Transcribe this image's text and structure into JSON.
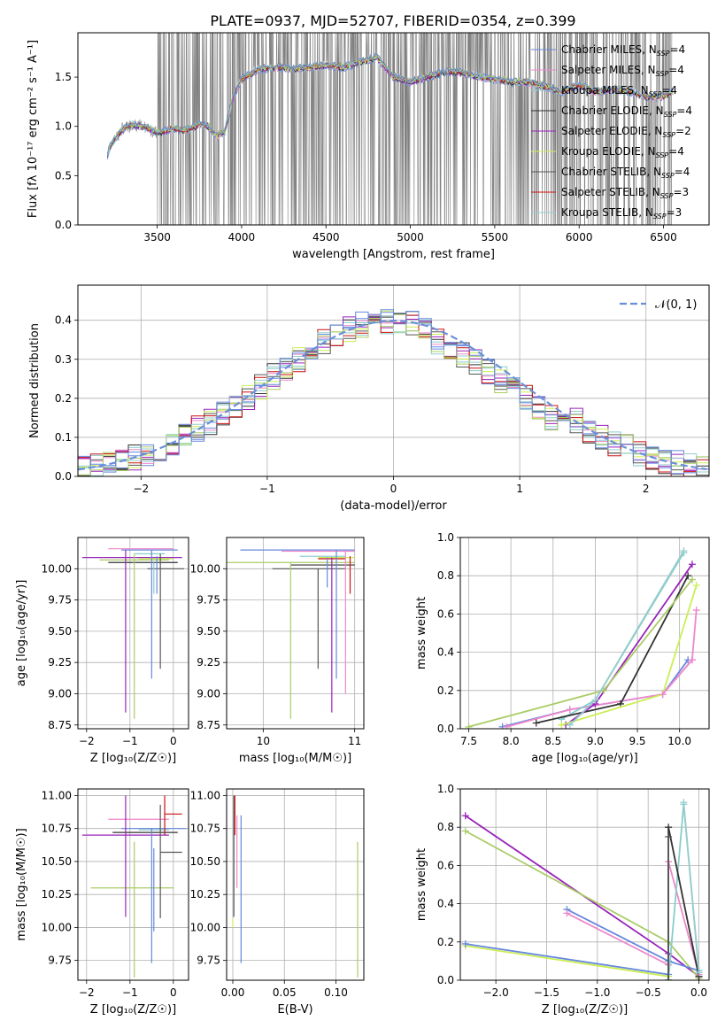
{
  "figure": {
    "title": "PLATE=0937, MJD=52707, FIBERID=0354, z=0.399"
  },
  "series_colors": [
    "#6688dd",
    "#ee88cc",
    "#88cccc",
    "#333333",
    "#9922bb",
    "#ccee55",
    "#555555",
    "#cc1111",
    "#99cccc"
  ],
  "series_names_extra": [
    "#dd7722",
    "#bbdd66"
  ],
  "chart_data": [
    {
      "id": "spectrum",
      "type": "line",
      "xlabel": "wavelength [Angstrom, rest frame]",
      "ylabel": "Flux [fλ 10⁻¹⁷ erg cm⁻² s⁻¹ A⁻¹]",
      "xlim": [
        3030,
        6770
      ],
      "ylim": [
        0,
        1.95
      ],
      "xticks": [
        3500,
        4000,
        4500,
        5000,
        5500,
        6000,
        6500
      ],
      "yticks": [
        0.0,
        0.5,
        1.0,
        1.5
      ],
      "grid": false,
      "legend_position": "top-right",
      "legend": [
        {
          "label": "Chabrier MILES, N",
          "sub": "SSP",
          "suffix": "=4",
          "color": "#6688dd"
        },
        {
          "label": "Salpeter MILES, N",
          "sub": "SSP",
          "suffix": "=4",
          "color": "#ee88cc"
        },
        {
          "label": "Kroupa MILES, N",
          "sub": "SSP",
          "suffix": "=4",
          "color": "#88cccc"
        },
        {
          "label": "Chabrier ELODIE, N",
          "sub": "SSP",
          "suffix": "=4",
          "color": "#333333"
        },
        {
          "label": "Salpeter ELODIE, N",
          "sub": "SSP",
          "suffix": "=2",
          "color": "#9922bb"
        },
        {
          "label": "Kroupa ELODIE, N",
          "sub": "SSP",
          "suffix": "=4",
          "color": "#ccee55"
        },
        {
          "label": "Chabrier STELIB, N",
          "sub": "SSP",
          "suffix": "=4",
          "color": "#555555"
        },
        {
          "label": "Salpeter STELIB, N",
          "sub": "SSP",
          "suffix": "=3",
          "color": "#cc1111"
        },
        {
          "label": "Kroupa STELIB, N",
          "sub": "SSP",
          "suffix": "=3",
          "color": "#99cccc"
        }
      ],
      "continuum": {
        "x": [
          3205,
          3220,
          3260,
          3300,
          3350,
          3400,
          3450,
          3500,
          3550,
          3600,
          3650,
          3700,
          3750,
          3800,
          3850,
          3900,
          3950,
          4000,
          4100,
          4200,
          4300,
          4400,
          4500,
          4600,
          4700,
          4800,
          4900,
          5000,
          5100,
          5200,
          5300,
          5400,
          5500,
          5600,
          5700,
          5800,
          5900,
          6000,
          6100,
          6200,
          6300,
          6400,
          6500,
          6550
        ],
        "y": [
          0.7,
          0.8,
          0.9,
          0.98,
          1.02,
          1.0,
          0.98,
          0.93,
          0.95,
          0.98,
          0.95,
          0.98,
          1.02,
          1.0,
          0.9,
          0.95,
          1.3,
          1.48,
          1.58,
          1.6,
          1.58,
          1.6,
          1.62,
          1.6,
          1.65,
          1.7,
          1.5,
          1.45,
          1.5,
          1.55,
          1.55,
          1.5,
          1.48,
          1.45,
          1.45,
          1.4,
          1.35,
          1.42,
          1.35,
          1.38,
          1.35,
          1.3,
          1.3,
          1.35
        ]
      },
      "data_start": 3500,
      "data_end": 6560
    },
    {
      "id": "residuals",
      "type": "line",
      "xlabel": "(data-model)/error",
      "ylabel": "Normed distribution",
      "xlim": [
        -2.5,
        2.5
      ],
      "ylim": [
        0,
        0.49
      ],
      "xticks": [
        -2,
        -1,
        0,
        1,
        2
      ],
      "yticks": [
        0.0,
        0.1,
        0.2,
        0.3,
        0.4
      ],
      "grid": true,
      "legend_position": "top-right",
      "legend": [
        {
          "label": "𝒩(0, 1)",
          "color": "#6a8fd8",
          "style": "dashed"
        }
      ],
      "hist_bin_width": 0.1
    },
    {
      "id": "age-vs-Z",
      "type": "scatter",
      "xlabel": "Z [log₁₀(Z/Z☉)]",
      "ylabel": "age  [log₁₀(age/yr)]",
      "xlim": [
        -2.2,
        0.35
      ],
      "ylim": [
        8.72,
        10.25
      ],
      "xticks": [
        -2,
        -1,
        0
      ],
      "yticks": [
        8.75,
        9.0,
        9.25,
        9.5,
        9.75,
        10.0
      ],
      "grid": true,
      "hlines": [
        {
          "y": 10.15,
          "x": [
            -1.2,
            0.1
          ],
          "c": 0
        },
        {
          "y": 10.16,
          "x": [
            -1.5,
            0.0
          ],
          "c": 1
        },
        {
          "y": 10.12,
          "x": [
            -0.9,
            -0.2
          ],
          "c": 2
        },
        {
          "y": 10.05,
          "x": [
            -1.5,
            0.1
          ],
          "c": 3
        },
        {
          "y": 10.09,
          "x": [
            -2.1,
            0.2
          ],
          "c": 4
        },
        {
          "y": 10.08,
          "x": [
            -0.8,
            0.0
          ],
          "c": 5
        },
        {
          "y": 10.0,
          "x": [
            -0.6,
            0.25
          ],
          "c": 6
        },
        {
          "y": 10.07,
          "x": [
            -1.7,
            -0.1
          ],
          "c": 11
        }
      ],
      "vlines": [
        {
          "x": -1.1,
          "y": [
            8.85,
            10.15
          ],
          "c": 4
        },
        {
          "x": -0.9,
          "y": [
            8.8,
            10.12
          ],
          "c": 11
        },
        {
          "x": -0.5,
          "y": [
            9.12,
            10.15
          ],
          "c": 0
        },
        {
          "x": -0.38,
          "y": [
            9.8,
            10.1
          ],
          "c": 12
        },
        {
          "x": -0.3,
          "y": [
            9.2,
            10.12
          ],
          "c": 6
        },
        {
          "x": -0.45,
          "y": [
            9.8,
            10.05
          ],
          "c": 2
        }
      ]
    },
    {
      "id": "age-vs-mass",
      "type": "scatter",
      "xlabel": "mass [log₁₀(M/M☉)]",
      "ylabel": "",
      "xlim": [
        9.6,
        11.1
      ],
      "ylim": [
        8.72,
        10.25
      ],
      "xticks": [
        10,
        11
      ],
      "yticks": [
        8.75,
        9.0,
        9.25,
        9.5,
        9.75,
        10.0
      ],
      "grid": true,
      "hlines": [
        {
          "y": 10.15,
          "x": [
            9.75,
            11.0
          ],
          "c": 0
        },
        {
          "y": 10.14,
          "x": [
            10.2,
            11.0
          ],
          "c": 1
        },
        {
          "y": 10.05,
          "x": [
            9.6,
            11.0
          ],
          "c": 11
        },
        {
          "y": 10.1,
          "x": [
            10.4,
            10.9
          ],
          "c": 2
        },
        {
          "y": 10.03,
          "x": [
            10.3,
            11.0
          ],
          "c": 3
        },
        {
          "y": 10.09,
          "x": [
            10.6,
            11.0
          ],
          "c": 5
        },
        {
          "y": 10.0,
          "x": [
            10.1,
            10.9
          ],
          "c": 6
        },
        {
          "y": 10.08,
          "x": [
            10.6,
            10.9
          ],
          "c": 7
        }
      ],
      "vlines": [
        {
          "x": 10.3,
          "y": [
            8.8,
            10.05
          ],
          "c": 11
        },
        {
          "x": 10.6,
          "y": [
            9.2,
            10.0
          ],
          "c": 6
        },
        {
          "x": 10.75,
          "y": [
            8.85,
            10.09
          ],
          "c": 4
        },
        {
          "x": 10.8,
          "y": [
            9.12,
            10.15
          ],
          "c": 0
        },
        {
          "x": 10.9,
          "y": [
            9.0,
            10.14
          ],
          "c": 1
        },
        {
          "x": 10.95,
          "y": [
            9.8,
            10.1
          ],
          "c": 7
        },
        {
          "x": 10.7,
          "y": [
            9.85,
            10.09
          ],
          "c": 12
        }
      ]
    },
    {
      "id": "weight-vs-age",
      "type": "line",
      "xlabel": "age  [log₁₀(age/yr)]",
      "ylabel": "mass weight",
      "xlim": [
        7.4,
        10.35
      ],
      "ylim": [
        0,
        1.0
      ],
      "xticks": [
        7.5,
        8.0,
        8.5,
        9.0,
        9.5,
        10.0
      ],
      "yticks": [
        0.0,
        0.2,
        0.4,
        0.6,
        0.8,
        1.0
      ],
      "grid": true,
      "series": [
        {
          "c": 0,
          "x": [
            7.9,
            8.7,
            9.8,
            10.1
          ],
          "y": [
            0.01,
            0.1,
            0.18,
            0.36
          ]
        },
        {
          "c": 1,
          "x": [
            7.95,
            8.7,
            9.8,
            10.15
          ],
          "y": [
            0.01,
            0.1,
            0.18,
            0.36
          ]
        },
        {
          "c": 2,
          "x": [
            8.6,
            9.0,
            10.05
          ],
          "y": [
            0.05,
            0.15,
            0.92
          ]
        },
        {
          "c": 3,
          "x": [
            8.3,
            9.3,
            10.1
          ],
          "y": [
            0.03,
            0.13,
            0.8
          ]
        },
        {
          "c": 4,
          "x": [
            8.65,
            9.0,
            10.15
          ],
          "y": [
            0.02,
            0.13,
            0.86
          ]
        },
        {
          "c": 5,
          "x": [
            8.6,
            9.8,
            10.2
          ],
          "y": [
            0.02,
            0.18,
            0.75
          ]
        },
        {
          "c": 11,
          "x": [
            7.5,
            9.1,
            10.15
          ],
          "y": [
            0.01,
            0.2,
            0.78
          ]
        },
        {
          "c": 1,
          "x": [
            9.8,
            10.15,
            10.2
          ],
          "y": [
            0.18,
            0.36,
            0.62
          ]
        },
        {
          "c": 8,
          "x": [
            8.7,
            9.0,
            10.05
          ],
          "y": [
            0.02,
            0.15,
            0.93
          ]
        }
      ]
    },
    {
      "id": "mass-vs-Z",
      "type": "scatter",
      "xlabel": "Z [log₁₀(Z/Z☉)]",
      "ylabel": "mass [log₁₀(M/M☉)]",
      "xlim": [
        -2.2,
        0.35
      ],
      "ylim": [
        9.6,
        11.05
      ],
      "xticks": [
        -2,
        -1,
        0
      ],
      "yticks": [
        9.75,
        10.0,
        10.25,
        10.5,
        10.75,
        11.0
      ],
      "grid": true,
      "hlines": [
        {
          "y": 10.75,
          "x": [
            -1.2,
            0.3
          ],
          "c": 0
        },
        {
          "y": 10.82,
          "x": [
            -1.5,
            -0.1
          ],
          "c": 1
        },
        {
          "y": 10.72,
          "x": [
            -1.4,
            0.1
          ],
          "c": 3
        },
        {
          "y": 10.7,
          "x": [
            -2.1,
            -0.1
          ],
          "c": 4
        },
        {
          "y": 10.57,
          "x": [
            -0.3,
            0.2
          ],
          "c": 6
        },
        {
          "y": 10.86,
          "x": [
            -0.2,
            0.2
          ],
          "c": 7
        },
        {
          "y": 10.3,
          "x": [
            -1.9,
            0.0
          ],
          "c": 11
        },
        {
          "y": 10.74,
          "x": [
            -0.8,
            -0.1
          ],
          "c": 2
        }
      ],
      "vlines": [
        {
          "x": -1.1,
          "y": [
            10.08,
            11.0
          ],
          "c": 4
        },
        {
          "x": -0.9,
          "y": [
            9.62,
            10.65
          ],
          "c": 11
        },
        {
          "x": -0.5,
          "y": [
            9.73,
            10.75
          ],
          "c": 0
        },
        {
          "x": -0.45,
          "y": [
            9.97,
            10.6
          ],
          "c": 12
        },
        {
          "x": -0.3,
          "y": [
            10.07,
            10.93
          ],
          "c": 6
        },
        {
          "x": -0.2,
          "y": [
            10.7,
            11.0
          ],
          "c": 7
        }
      ]
    },
    {
      "id": "mass-vs-EBV",
      "type": "scatter",
      "xlabel": "E(B-V)",
      "ylabel": "",
      "xlim": [
        -0.006,
        0.127
      ],
      "ylim": [
        9.6,
        11.05
      ],
      "xticks": [
        0.0,
        0.05,
        0.1
      ],
      "yticks": [
        9.75,
        10.0,
        10.25,
        10.5,
        10.75,
        11.0
      ],
      "grid": true,
      "vlines": [
        {
          "x": 0.0,
          "y": [
            10.0,
            10.07
          ],
          "c": 5
        },
        {
          "x": 0.001,
          "y": [
            10.08,
            11.0
          ],
          "c": 6
        },
        {
          "x": 0.002,
          "y": [
            10.7,
            11.0
          ],
          "c": 7
        },
        {
          "x": 0.004,
          "y": [
            10.3,
            10.85
          ],
          "c": 1
        },
        {
          "x": 0.008,
          "y": [
            9.73,
            10.85
          ],
          "c": 0
        },
        {
          "x": 0.121,
          "y": [
            9.62,
            10.65
          ],
          "c": 11
        }
      ]
    },
    {
      "id": "weight-vs-Z",
      "type": "line",
      "xlabel": "Z [log₁₀(Z/Z☉)]",
      "ylabel": "mass weight",
      "xlim": [
        -2.35,
        0.1
      ],
      "ylim": [
        0,
        1.0
      ],
      "xticks": [
        -2.0,
        -1.5,
        -1.0,
        -0.5,
        0.0
      ],
      "yticks": [
        0.0,
        0.2,
        0.4,
        0.6,
        0.8,
        1.0
      ],
      "grid": true,
      "series": [
        {
          "c": 4,
          "x": [
            -2.3,
            -0.3,
            0.0
          ],
          "y": [
            0.86,
            0.14,
            0.02
          ]
        },
        {
          "c": 11,
          "x": [
            -2.3,
            -0.3,
            0.0
          ],
          "y": [
            0.78,
            0.2,
            0.01
          ]
        },
        {
          "c": 5,
          "x": [
            -2.3,
            -0.3
          ],
          "y": [
            0.18,
            0.02
          ]
        },
        {
          "c": 12,
          "x": [
            -2.3,
            -0.3
          ],
          "y": [
            0.19,
            0.03
          ]
        },
        {
          "c": 0,
          "x": [
            -1.3,
            -0.3,
            0.0
          ],
          "y": [
            0.37,
            0.1,
            0.05
          ]
        },
        {
          "c": 1,
          "x": [
            -1.3,
            -0.3,
            -0.3,
            0.0
          ],
          "y": [
            0.35,
            0.08,
            0.62,
            0.03
          ]
        },
        {
          "c": 2,
          "x": [
            -0.3,
            -0.15,
            0.0
          ],
          "y": [
            0.0,
            0.92,
            0.05
          ]
        },
        {
          "c": 3,
          "x": [
            -0.3,
            -0.3,
            0.0
          ],
          "y": [
            0.0,
            0.8,
            0.02
          ]
        },
        {
          "c": 6,
          "x": [
            -0.3,
            -0.3
          ],
          "y": [
            0.0,
            0.75
          ]
        },
        {
          "c": 8,
          "x": [
            -0.15,
            0.0
          ],
          "y": [
            0.93,
            0.04
          ]
        }
      ]
    }
  ]
}
